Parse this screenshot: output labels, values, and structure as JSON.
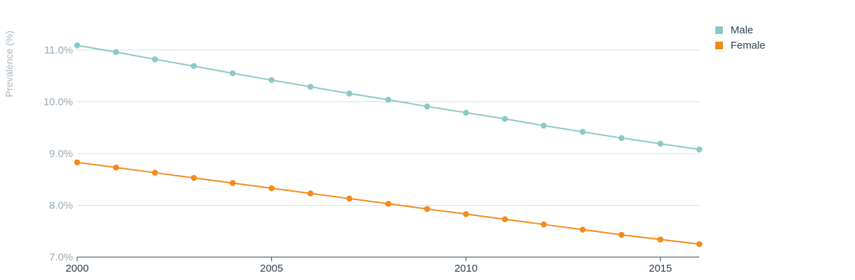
{
  "chart_data": {
    "type": "line",
    "ylabel": "Prevalence (%)",
    "xlabel": "",
    "x": [
      2000,
      2001,
      2002,
      2003,
      2004,
      2005,
      2006,
      2007,
      2008,
      2009,
      2010,
      2011,
      2012,
      2013,
      2014,
      2015,
      2016
    ],
    "xlim": [
      2000,
      2016
    ],
    "x_ticks": [
      {
        "value": 2000,
        "label": "2000"
      },
      {
        "value": 2005,
        "label": "2005"
      },
      {
        "value": 2010,
        "label": "2010"
      },
      {
        "value": 2015,
        "label": "2015"
      }
    ],
    "ylim": [
      7.0,
      11.0
    ],
    "y_ticks": [
      {
        "value": 7.0,
        "label": "7.0%"
      },
      {
        "value": 8.0,
        "label": "8.0%"
      },
      {
        "value": 9.0,
        "label": "9.0%"
      },
      {
        "value": 10.0,
        "label": "10.0%"
      },
      {
        "value": 11.0,
        "label": "11.0%"
      }
    ],
    "grid": true,
    "legend_position": "top-right",
    "series": [
      {
        "name": "Male",
        "color": "#8bc9c8",
        "values": [
          11.09,
          10.96,
          10.82,
          10.69,
          10.55,
          10.42,
          10.29,
          10.16,
          10.04,
          9.91,
          9.79,
          9.67,
          9.54,
          9.42,
          9.3,
          9.19,
          9.08
        ]
      },
      {
        "name": "Female",
        "color": "#f28a1c",
        "values": [
          8.83,
          8.73,
          8.63,
          8.53,
          8.43,
          8.33,
          8.23,
          8.13,
          8.03,
          7.93,
          7.83,
          7.73,
          7.63,
          7.53,
          7.43,
          7.34,
          7.25
        ]
      }
    ]
  }
}
